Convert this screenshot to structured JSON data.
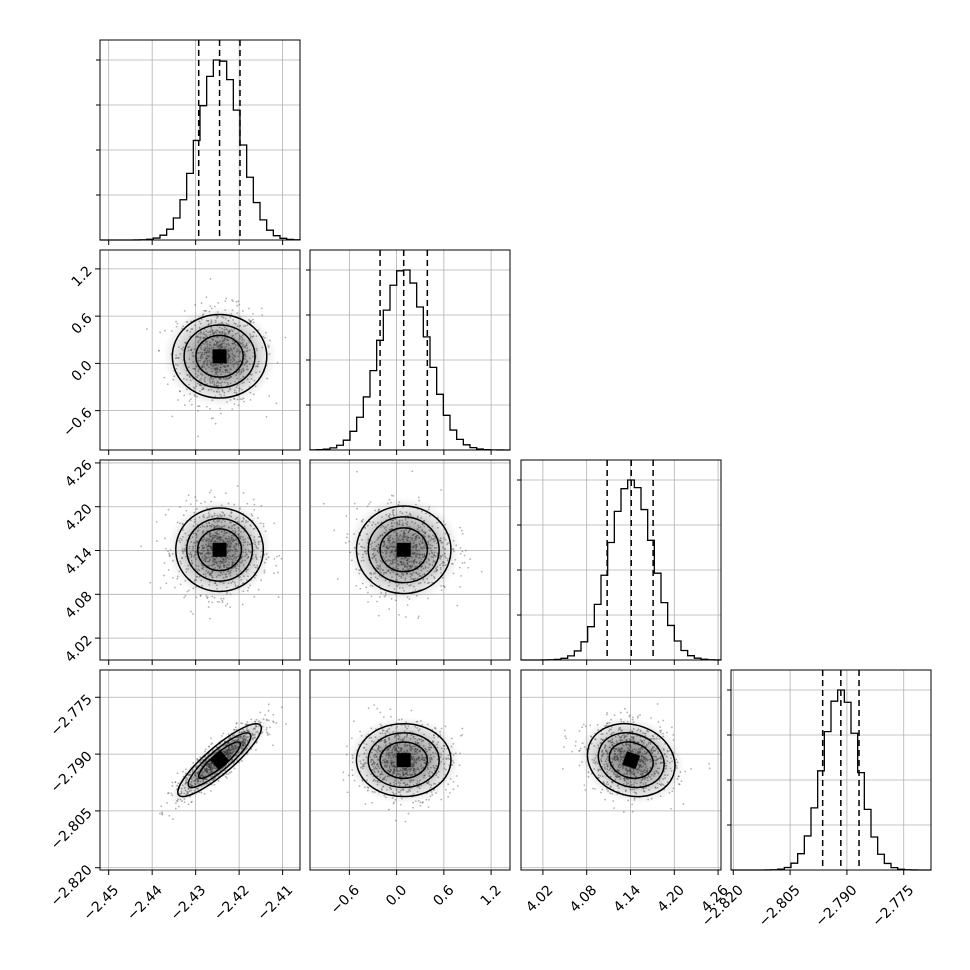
{
  "chart_data": {
    "type": "corner",
    "grid": true,
    "parameters": [
      {
        "ticks": [
          -2.45,
          -2.44,
          -2.43,
          -2.42,
          -2.41
        ],
        "tick_labels": [
          "−2.45",
          "−2.44",
          "−2.43",
          "−2.42",
          "−2.41"
        ],
        "range": [
          -2.452,
          -2.406
        ],
        "mean": -2.4245,
        "sd": 0.0048,
        "quantiles": [
          -2.4293,
          -2.4245,
          -2.4198
        ]
      },
      {
        "ticks": [
          -0.6,
          0.0,
          0.6,
          1.2
        ],
        "tick_labels": [
          "−0.6",
          "0.0",
          "0.6",
          "1.2"
        ],
        "range": [
          -1.1,
          1.44
        ],
        "mean": 0.09,
        "sd": 0.3,
        "quantiles": [
          -0.21,
          0.09,
          0.39
        ]
      },
      {
        "ticks": [
          4.02,
          4.08,
          4.14,
          4.2,
          4.26
        ],
        "tick_labels": [
          "4.02",
          "4.08",
          "4.14",
          "4.20",
          "4.26"
        ],
        "range": [
          3.99,
          4.264
        ],
        "mean": 4.141,
        "sd": 0.03,
        "quantiles": [
          4.108,
          4.141,
          4.171
        ]
      },
      {
        "ticks": [
          -2.82,
          -2.805,
          -2.79,
          -2.775
        ],
        "tick_labels": [
          "−2.820",
          "−2.805",
          "−2.790",
          "−2.775"
        ],
        "range": [
          -2.8206,
          -2.7678
        ],
        "mean": -2.7916,
        "sd": 0.0048,
        "quantiles": [
          -2.7964,
          -2.7916,
          -2.7868
        ]
      }
    ],
    "correlations": {
      "1-0": 0.0,
      "2-0": 0.0,
      "2-1": 0.0,
      "3-0": 0.88,
      "3-1": 0.0,
      "3-2": -0.15
    }
  }
}
